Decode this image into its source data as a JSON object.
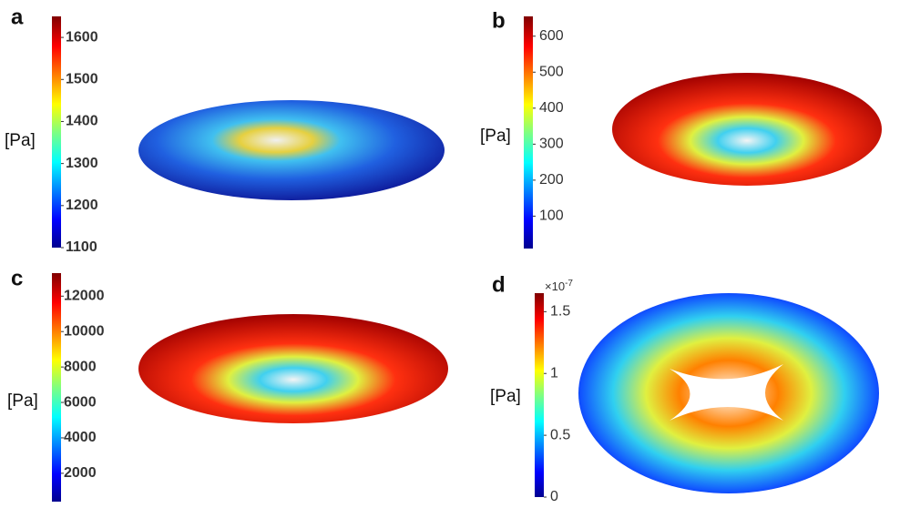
{
  "panels": [
    {
      "label": "a",
      "unit": "[Pa]",
      "clim": [
        1100,
        1650
      ],
      "ticks": [
        1100,
        1200,
        1300,
        1400,
        1500,
        1600
      ]
    },
    {
      "label": "b",
      "unit": "[Pa]",
      "clim": [
        10,
        655
      ],
      "ticks": [
        100,
        200,
        300,
        400,
        500,
        600
      ]
    },
    {
      "label": "c",
      "unit": "[Pa]",
      "clim": [
        400,
        13300
      ],
      "ticks": [
        2000,
        4000,
        6000,
        8000,
        10000,
        12000
      ]
    },
    {
      "label": "d",
      "unit": "[Pa]",
      "clim": [
        0,
        1.65
      ],
      "ticks": [
        0,
        0.5,
        1,
        1.5
      ],
      "scale_label": "×10",
      "scale_exponent": "-7"
    }
  ]
}
